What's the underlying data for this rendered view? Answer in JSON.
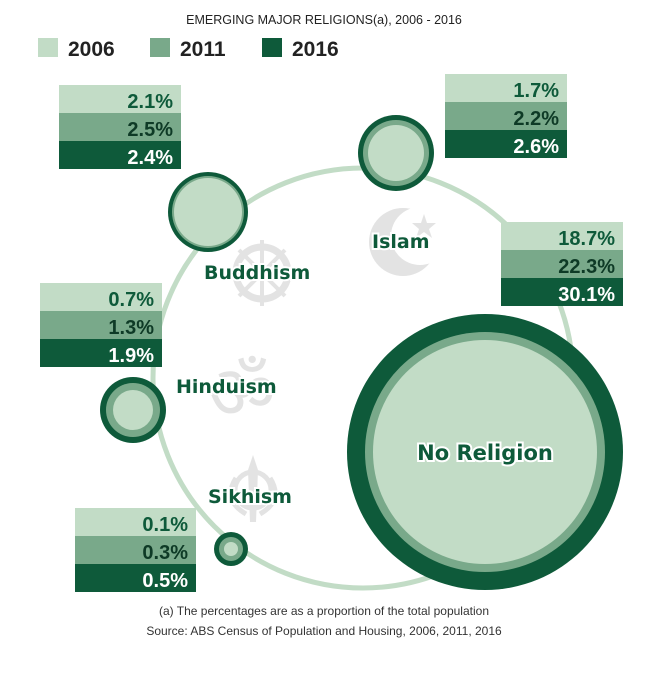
{
  "colors": {
    "y2006": "#c2dcc6",
    "y2011": "#79a98a",
    "y2016": "#0e5a3a",
    "ring": "#c2dcc6",
    "symbol": "#e3e3e3"
  },
  "chart_data": {
    "type": "bubble",
    "title": "EMERGING MAJOR RELIGIONS(a), 2006 - 2016",
    "unit": "%",
    "legend": [
      "2006",
      "2011",
      "2016"
    ],
    "legend_position": "top-left",
    "series": [
      {
        "name": "Islam",
        "values": [
          1.7,
          2.2,
          2.6
        ],
        "labels": [
          "1.7%",
          "2.2%",
          "2.6%"
        ],
        "icon": "crescent-icon"
      },
      {
        "name": "Buddhism",
        "values": [
          2.1,
          2.5,
          2.4
        ],
        "labels": [
          "2.1%",
          "2.5%",
          "2.4%"
        ],
        "icon": "dharma-wheel-icon"
      },
      {
        "name": "Hinduism",
        "values": [
          0.7,
          1.3,
          1.9
        ],
        "labels": [
          "0.7%",
          "1.3%",
          "1.9%"
        ],
        "icon": "om-icon"
      },
      {
        "name": "Sikhism",
        "values": [
          0.1,
          0.3,
          0.5
        ],
        "labels": [
          "0.1%",
          "0.3%",
          "0.5%"
        ],
        "icon": "khanda-icon"
      },
      {
        "name": "No Religion",
        "values": [
          18.7,
          22.3,
          30.1
        ],
        "labels": [
          "18.7%",
          "22.3%",
          "30.1%"
        ]
      }
    ],
    "footnote": "(a) The percentages are as a proportion of the total population",
    "source": "Source: ABS Census of Population and Housing, 2006, 2011, 2016"
  }
}
